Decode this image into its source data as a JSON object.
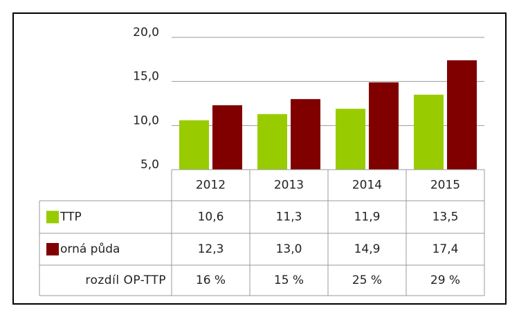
{
  "chart_data": {
    "type": "bar",
    "categories": [
      "2012",
      "2013",
      "2014",
      "2015"
    ],
    "series": [
      {
        "name": "TTP",
        "color": "#99cc00",
        "values": [
          10.6,
          11.3,
          11.9,
          13.5
        ],
        "value_labels": [
          "10,6",
          "11,3",
          "11,9",
          "13,5"
        ]
      },
      {
        "name": "orná půda",
        "color": "#800000",
        "values": [
          12.3,
          13.0,
          14.9,
          17.4
        ],
        "value_labels": [
          "12,3",
          "13,0",
          "14,9",
          "17,4"
        ]
      }
    ],
    "difference": {
      "name": "rozdíl OP-TTP",
      "values": [
        16,
        15,
        25,
        29
      ],
      "value_labels": [
        "16 %",
        "15 %",
        "25 %",
        "29 %"
      ]
    },
    "ylim": [
      5,
      20
    ],
    "yticks": [
      {
        "value": 5,
        "label": "5,0"
      },
      {
        "value": 10,
        "label": "10,0"
      },
      {
        "value": 15,
        "label": "15,0"
      },
      {
        "value": 20,
        "label": "20,0"
      }
    ],
    "grid": true
  }
}
